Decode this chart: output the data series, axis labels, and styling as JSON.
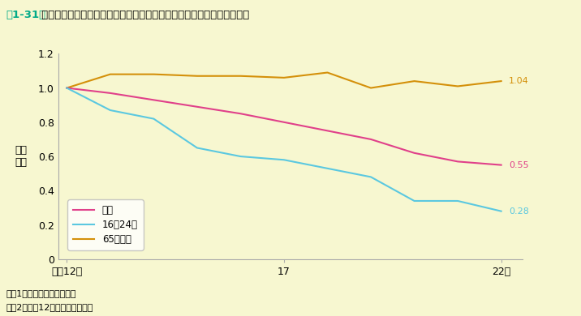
{
  "title_prefix": "第1-31図",
  "title_main": " 自動車（第１当事者）運転者の若者・高齢者別死亡事故発生件数の推移",
  "background_color": "#f7f7d0",
  "plot_background_color": "#f7f7d0",
  "xlabel_ticks": [
    "平成12年",
    "17",
    "22年"
  ],
  "xlabel_tick_positions": [
    0,
    5,
    10
  ],
  "ylabel_label": "（指\n数）",
  "ylim": [
    0,
    1.2
  ],
  "yticks": [
    0,
    0.2,
    0.4,
    0.6,
    0.8,
    1.0,
    1.2
  ],
  "years": [
    0,
    1,
    2,
    3,
    4,
    5,
    6,
    7,
    8,
    9,
    10
  ],
  "total": [
    1.0,
    0.97,
    0.93,
    0.89,
    0.85,
    0.8,
    0.75,
    0.7,
    0.62,
    0.57,
    0.55
  ],
  "young": [
    1.0,
    0.87,
    0.82,
    0.65,
    0.6,
    0.58,
    0.53,
    0.48,
    0.34,
    0.34,
    0.28
  ],
  "elderly": [
    1.0,
    1.08,
    1.08,
    1.07,
    1.07,
    1.06,
    1.09,
    1.0,
    1.04,
    1.01,
    1.04
  ],
  "total_color": "#e0408a",
  "young_color": "#5bc8e0",
  "elderly_color": "#d4900a",
  "total_label": "総数",
  "young_label": "16～24歳",
  "elderly_label": "65歳以上",
  "note1": "注　1　警察庁資料による。",
  "note2": "　　2　平成12年を１とした指数",
  "end_label_total": "0.55",
  "end_label_young": "0.28",
  "end_label_elderly": "1.04",
  "title_box_color": "#00aa88",
  "spine_color": "#aaaaaa"
}
